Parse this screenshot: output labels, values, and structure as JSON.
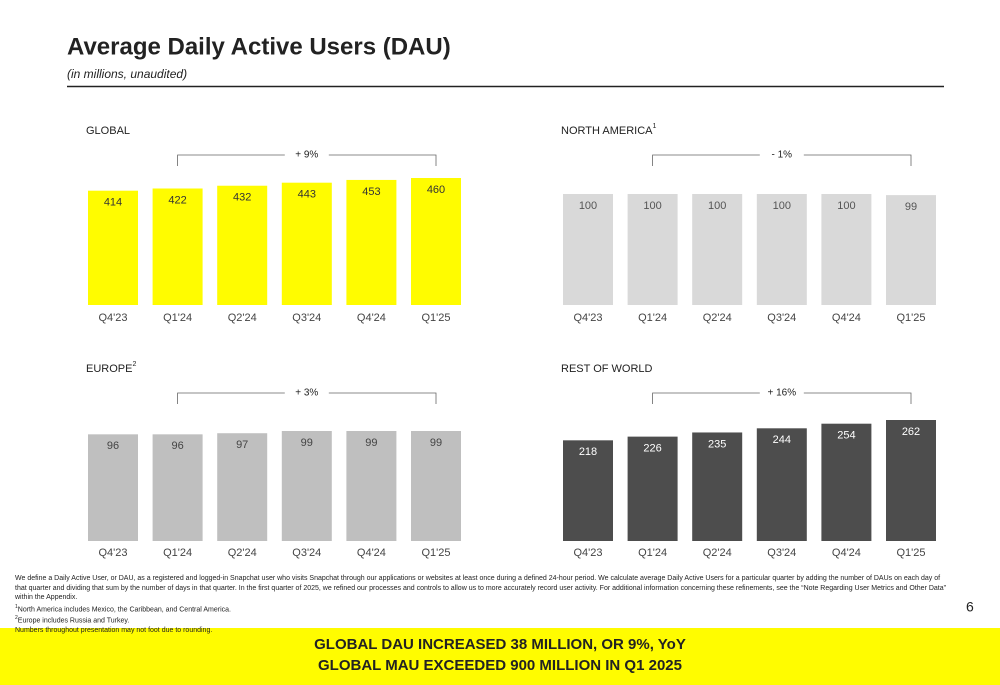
{
  "title": "Average Daily Active Users (DAU)",
  "subtitle": "(in millions, unaudited)",
  "chart_data": [
    {
      "type": "bar",
      "title": "GLOBAL",
      "categories": [
        "Q4'23",
        "Q1'24",
        "Q2'24",
        "Q3'24",
        "Q4'24",
        "Q1'25"
      ],
      "values": [
        414,
        422,
        432,
        443,
        453,
        460
      ],
      "color": "#fffc00",
      "label_color": "#333333",
      "annotation": "+ 9%"
    },
    {
      "type": "bar",
      "title": "NORTH AMERICA",
      "title_superscript": "1",
      "categories": [
        "Q4'23",
        "Q1'24",
        "Q2'24",
        "Q3'24",
        "Q4'24",
        "Q1'25"
      ],
      "values": [
        100,
        100,
        100,
        100,
        100,
        99
      ],
      "color": "#d9d9d9",
      "label_color": "#555555",
      "annotation": "- 1%"
    },
    {
      "type": "bar",
      "title": "EUROPE",
      "title_superscript": "2",
      "categories": [
        "Q4'23",
        "Q1'24",
        "Q2'24",
        "Q3'24",
        "Q4'24",
        "Q1'25"
      ],
      "values": [
        96,
        96,
        97,
        99,
        99,
        99
      ],
      "color": "#bfbfbf",
      "label_color": "#444444",
      "annotation": "+ 3%"
    },
    {
      "type": "bar",
      "title": "REST OF WORLD",
      "categories": [
        "Q4'23",
        "Q1'24",
        "Q2'24",
        "Q3'24",
        "Q4'24",
        "Q1'25"
      ],
      "values": [
        218,
        226,
        235,
        244,
        254,
        262
      ],
      "color": "#4d4d4d",
      "label_color": "#ffffff",
      "annotation": "+ 16%"
    }
  ],
  "footnotes": [
    {
      "text": "We define a Daily Active User, or DAU, as a registered and logged-in Snapchat user who visits Snapchat through our applications or websites at least once during a defined 24-hour period. We calculate average Daily Active Users for a particular quarter by adding the number of DAUs on each day of that quarter and dividing that sum by the number of days in that quarter. In the first quarter of 2025, we refined our processes and controls to allow us to more accurately record user activity. For additional information concerning these refinements, see the “Note Regarding User Metrics and Other Data” within the Appendix."
    },
    {
      "marker": "1",
      "text": "North America includes Mexico, the Caribbean, and Central America."
    },
    {
      "marker": "2",
      "text": "Europe includes Russia and Turkey."
    },
    {
      "text": "Numbers throughout presentation may not foot due to rounding."
    }
  ],
  "page_number": "6",
  "banner": [
    "GLOBAL DAU INCREASED 38 MILLION, OR 9%, YoY",
    "GLOBAL MAU EXCEEDED 900 MILLION IN Q1 2025"
  ]
}
